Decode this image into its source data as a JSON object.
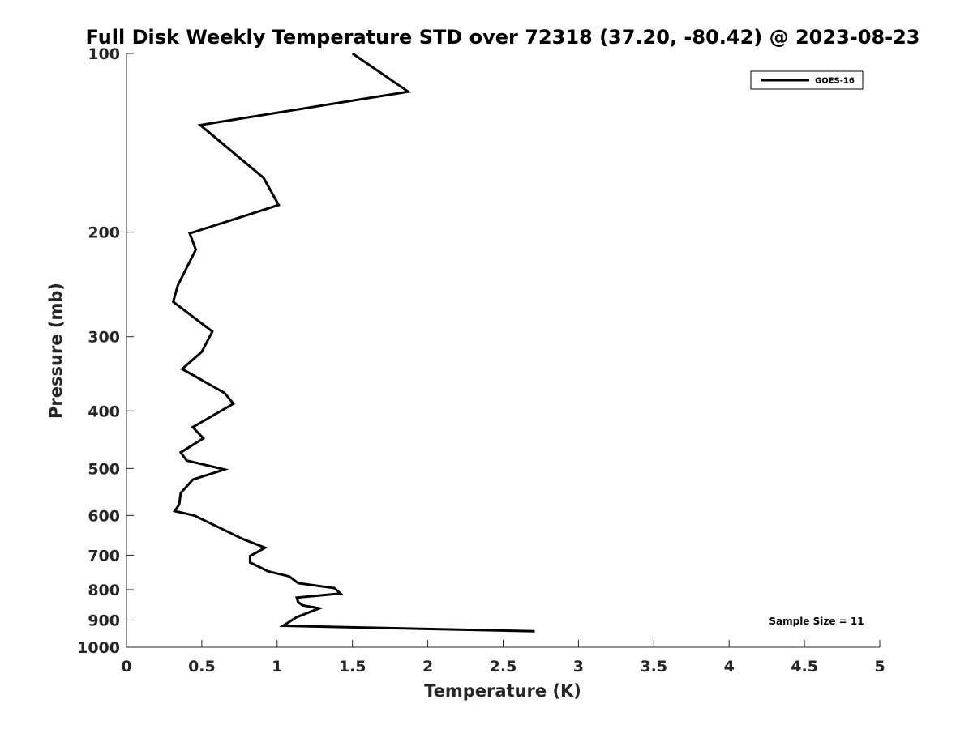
{
  "chart_data": {
    "type": "line",
    "title": "Full Disk Weekly Temperature STD over 72318 (37.20, -80.42) @ 2023-08-23",
    "xlabel": "Temperature (K)",
    "ylabel": "Pressure (mb)",
    "xlim": [
      0,
      5
    ],
    "ylim": [
      100,
      1000
    ],
    "y_scale": "log",
    "y_reversed": true,
    "grid": false,
    "legend_placement": "top-right",
    "x_ticks": [
      "0",
      "0.5",
      "1",
      "1.5",
      "2",
      "2.5",
      "3",
      "3.5",
      "4",
      "4.5",
      "5"
    ],
    "y_ticks": [
      "100",
      "200",
      "300",
      "400",
      "500",
      "600",
      "700",
      "800",
      "900",
      "1000"
    ],
    "annotation": "Sample Size = 11",
    "series": [
      {
        "name": "GOES-16",
        "color": "#000000",
        "x": [
          1.5,
          1.87,
          0.49,
          0.91,
          1.01,
          0.42,
          0.46,
          0.34,
          0.31,
          0.57,
          0.5,
          0.37,
          0.65,
          0.71,
          0.44,
          0.51,
          0.36,
          0.4,
          0.65,
          0.44,
          0.36,
          0.35,
          0.32,
          0.45,
          0.77,
          0.92,
          0.82,
          0.82,
          0.94,
          1.08,
          1.14,
          1.38,
          1.42,
          1.13,
          1.14,
          1.17,
          1.28,
          1.13,
          1.04,
          2.71
        ],
        "y": [
          100,
          116,
          132,
          162,
          180,
          201,
          214,
          246,
          262,
          294,
          318,
          340,
          373,
          389,
          426,
          445,
          470,
          485,
          502,
          522,
          550,
          575,
          590,
          600,
          657,
          680,
          702,
          720,
          745,
          760,
          780,
          795,
          812,
          825,
          840,
          850,
          860,
          890,
          920,
          940
        ]
      }
    ]
  }
}
